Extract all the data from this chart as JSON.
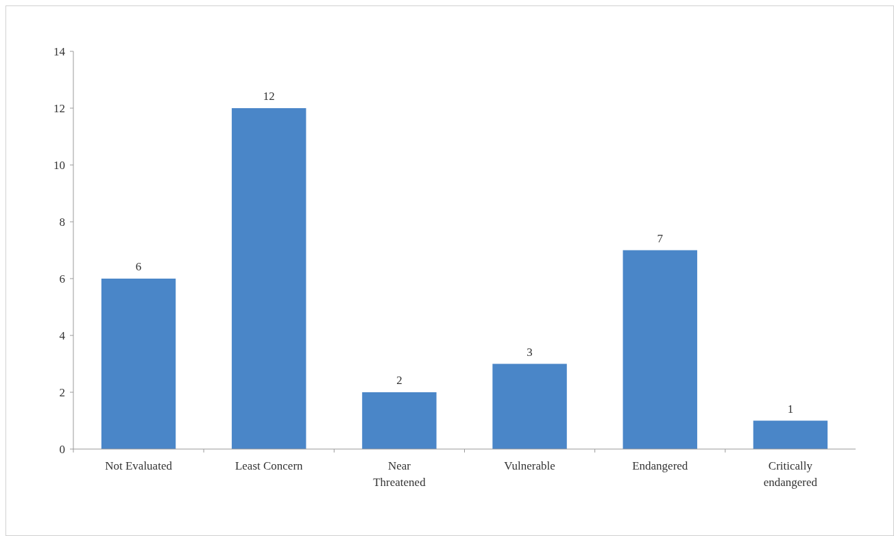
{
  "chart_data": {
    "type": "bar",
    "categories": [
      "Not Evaluated",
      "Least Concern",
      "Near\nThreatened",
      "Vulnerable",
      "Endangered",
      "Critically\nendangered"
    ],
    "values": [
      6,
      12,
      2,
      3,
      7,
      1
    ],
    "color": "#4a86c8",
    "ylim": [
      0,
      14
    ],
    "yticks": [
      0,
      2,
      4,
      6,
      8,
      10,
      12,
      14
    ],
    "data_labels": true
  }
}
